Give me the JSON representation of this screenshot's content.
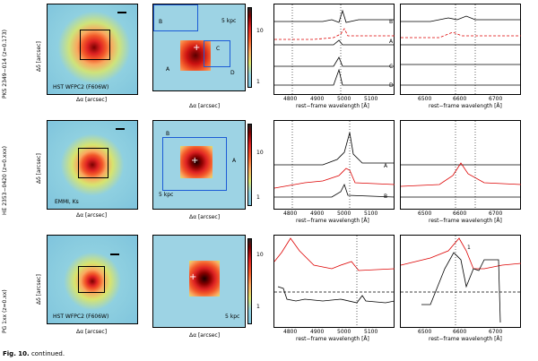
{
  "rows": [
    {
      "object_label": "PKS 2349−014 (z=0.173)",
      "cutout_label": "HST WFPC2 (F606W)",
      "ifu_label": "5 kpc",
      "spec_labels": [
        "B",
        "A",
        "C",
        "D"
      ],
      "blue_xlabel": "rest−frame wavelength [Å]",
      "red_xlabel": "rest−frame wavelength [Å]",
      "blue_ticks": [
        "4800",
        "4900",
        "5000",
        "5100"
      ],
      "red_ticks": [
        "6500",
        "6600",
        "6700"
      ],
      "y_ticks": [
        "10",
        "1"
      ],
      "cut_xlabel": "Δα [arcsec]",
      "cut_ylabel": "Δδ [arcsec]",
      "ifu_xlabel": "Δα [arcsec]"
    },
    {
      "object_label": "HE 2353−0420 (z=0.xxx)",
      "cutout_label": "EMMI, Ks",
      "ifu_label": "5 kpc",
      "spec_labels": [
        "A",
        "B"
      ],
      "blue_xlabel": "rest−frame wavelength [Å]",
      "red_xlabel": "rest−frame wavelength [Å]",
      "blue_ticks": [
        "4800",
        "4900",
        "5000",
        "5100"
      ],
      "red_ticks": [
        "6500",
        "6600",
        "6700"
      ],
      "y_ticks": [
        "10",
        "1"
      ],
      "cut_xlabel": "Δα [arcsec]",
      "cut_ylabel": "Δδ [arcsec]",
      "ifu_xlabel": "Δα [arcsec]"
    },
    {
      "object_label": "PG 1xx (z=0.xx)",
      "cutout_label": "HST WFPC2 (F606W)",
      "ifu_label": "5 kpc",
      "spec_labels": [
        "1"
      ],
      "blue_xlabel": "rest−frame wavelength [Å]",
      "red_xlabel": "rest−frame wavelength [Å]",
      "blue_ticks": [
        "4800",
        "4900",
        "5000",
        "5100"
      ],
      "red_ticks": [
        "6500",
        "6600",
        "6700"
      ],
      "y_ticks": [
        "10",
        "1"
      ],
      "cut_xlabel": "Δα [arcsec]",
      "cut_ylabel": "Δδ [arcsec]",
      "ifu_xlabel": "Δα [arcsec]"
    }
  ],
  "ifu_regions_row1": [
    "B",
    "C",
    "A",
    "D"
  ],
  "caption": {
    "prefix": "Fig. 10.",
    "text": "continued."
  }
}
